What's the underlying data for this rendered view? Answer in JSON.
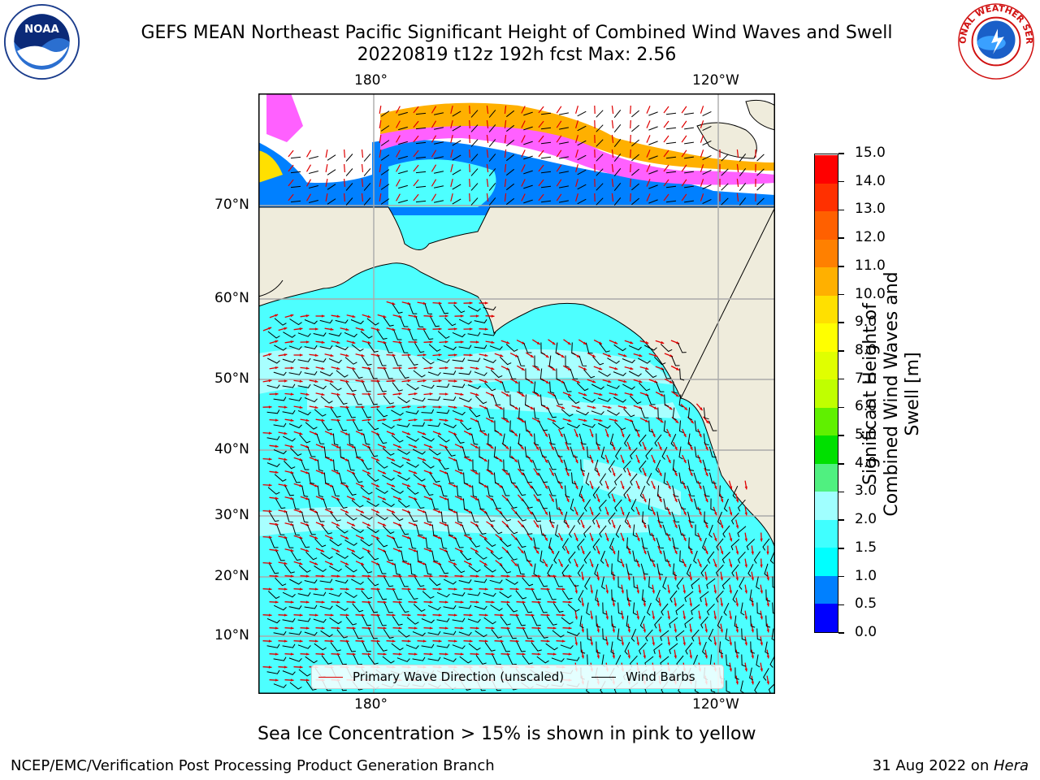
{
  "title": {
    "line1": "GEFS MEAN Northeast Pacific Significant Height of Combined Wind Waves and Swell",
    "line2": "20220819 t12z 192h fcst   Max: 2.56"
  },
  "map": {
    "lon_labels_top": [
      "180°",
      "120°W"
    ],
    "lon_labels_bottom": [
      "180°",
      "120°W"
    ],
    "lat_labels": [
      "70°N",
      "60°N",
      "50°N",
      "40°N",
      "30°N",
      "20°N",
      "10°N"
    ],
    "land_color": "#efecdc",
    "ocean_base_color": "#4dffff",
    "wave_arrow_color": "#e00000",
    "wind_barb_color": "#000000"
  },
  "legend": {
    "wave_label": "Primary Wave Direction (unscaled)",
    "wind_label": "Wind Barbs"
  },
  "colorbar": {
    "label": "Significant Height of Combined Wind Waves and Swell [m]",
    "ticks": [
      "0.0",
      "0.5",
      "1.0",
      "1.5",
      "2.0",
      "3.0",
      "4.0",
      "5.0",
      "6.0",
      "7.0",
      "8.0",
      "9.0",
      "10.0",
      "11.0",
      "12.0",
      "13.0",
      "14.0",
      "15.0"
    ],
    "colors": [
      "#0000ff",
      "#0080ff",
      "#00ffff",
      "#40ffff",
      "#a0ffff",
      "#50f080",
      "#00e000",
      "#60f000",
      "#c0ff00",
      "#e0ff00",
      "#ffff00",
      "#ffe000",
      "#ffb000",
      "#ff8000",
      "#ff6000",
      "#ff3000",
      "#ff0000"
    ]
  },
  "note": "Sea Ice Concentration > 15% is shown in pink to yellow",
  "footer": {
    "left": "NCEP/EMC/Verification Post Processing Product Generation Branch",
    "date": "31 Aug 2022 on ",
    "machine": "Hera"
  },
  "logos": {
    "noaa_text": "NOAA",
    "nws_text": "NATIONAL WEATHER SERVICE"
  }
}
